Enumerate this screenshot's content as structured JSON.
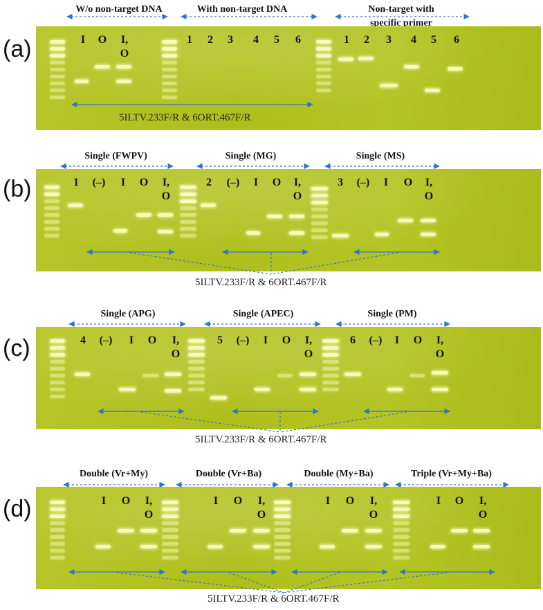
{
  "panels": {
    "a": {
      "letter": "(a)",
      "groups": [
        "W/o non-target DNA",
        "With non-target DNA",
        "Non-target with",
        "specific primer"
      ],
      "lanes": [
        "I",
        "O",
        "I,",
        "O",
        "1",
        "2",
        "3",
        "4",
        "5",
        "6",
        "1",
        "2",
        "3",
        "4",
        "5",
        "6"
      ],
      "primer": "5ILTV.233F/R & 6ORT.467F/R"
    },
    "b": {
      "letter": "(b)",
      "groups": [
        "Single (FWPV)",
        "Single (MG)",
        "Single (MS)"
      ],
      "lanes": [
        "1",
        "(–)",
        "I",
        "O",
        "I,",
        "O",
        "2",
        "(–)",
        "I",
        "O",
        "I,",
        "O",
        "3",
        "(–)",
        "I",
        "O",
        "I,",
        "O"
      ],
      "primer": "5ILTV.233F/R & 6ORT.467F/R"
    },
    "c": {
      "letter": "(c)",
      "groups": [
        "Single (APG)",
        "Single (APEC)",
        "Single (PM)"
      ],
      "lanes": [
        "4",
        "(–)",
        "I",
        "O",
        "I,",
        "O",
        "5",
        "(–)",
        "I",
        "O",
        "I,",
        "O",
        "6",
        "(–)",
        "I",
        "O",
        "I,",
        "O"
      ],
      "primer": "5ILTV.233F/R & 6ORT.467F/R"
    },
    "d": {
      "letter": "(d)",
      "groups": [
        "Double (Vr+My)",
        "Double (Vr+Ba)",
        "Double (My+Ba)",
        "Triple (Vr+My+Ba)"
      ],
      "lanes": [
        "I",
        "O",
        "I,",
        "O",
        "I",
        "O",
        "I,",
        "O",
        "I",
        "O",
        "I,",
        "O",
        "I",
        "O",
        "I,",
        "O"
      ],
      "primer": "5ILTV.233F/R & 6ORT.467F/R"
    }
  },
  "colors": {
    "gel": "#b3c425",
    "band": "#f4fbb4",
    "arrow": "#2e74c9"
  }
}
